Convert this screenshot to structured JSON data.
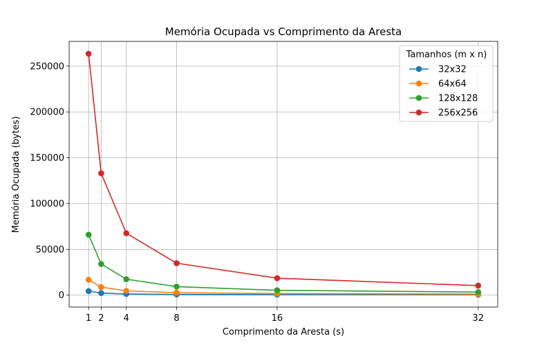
{
  "chart_data": {
    "type": "line",
    "title": "Memória Ocupada vs Comprimento da Aresta",
    "xlabel": "Comprimento da Aresta (s)",
    "ylabel": "Memória Ocupada (bytes)",
    "x": [
      1,
      2,
      4,
      8,
      16,
      32
    ],
    "x_ticks": [
      "1",
      "2",
      "4",
      "8",
      "16",
      "32"
    ],
    "y_ticks": [
      "0",
      "50000",
      "100000",
      "150000",
      "200000",
      "250000"
    ],
    "y_tick_values": [
      0,
      50000,
      100000,
      150000,
      200000,
      250000
    ],
    "xlim": [
      -0.55,
      33.55
    ],
    "ylim": [
      -13000,
      277000
    ],
    "grid": true,
    "legend": {
      "title": "Tamanhos (m x n)",
      "position": "top-right"
    },
    "series": [
      {
        "name": "32x32",
        "color": "#1f77b4",
        "values": [
          4400,
          2300,
          1300,
          800,
          600,
          500
        ]
      },
      {
        "name": "64x64",
        "color": "#ff7f0e",
        "values": [
          16800,
          8800,
          4700,
          2700,
          1700,
          1200
        ]
      },
      {
        "name": "128x128",
        "color": "#2ca02c",
        "values": [
          66000,
          34000,
          17400,
          9300,
          5300,
          3300
        ]
      },
      {
        "name": "256x256",
        "color": "#d62728",
        "values": [
          263500,
          133000,
          67600,
          34900,
          18500,
          10400
        ]
      }
    ]
  }
}
